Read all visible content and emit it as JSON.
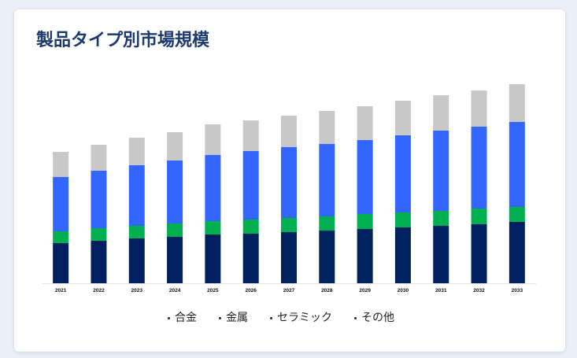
{
  "chart_data": {
    "type": "bar",
    "stacked": true,
    "title": "製品タイプ別市場規模",
    "categories": [
      "2021",
      "2022",
      "2023",
      "2024",
      "2025",
      "2026",
      "2027",
      "2028",
      "2029",
      "2030",
      "2031",
      "2032",
      "2033"
    ],
    "series": [
      {
        "name": "合金",
        "color": "#002060",
        "values": [
          5.1,
          5.4,
          5.7,
          5.9,
          6.2,
          6.3,
          6.5,
          6.7,
          6.9,
          7.1,
          7.3,
          7.5,
          7.8
        ]
      },
      {
        "name": "金属",
        "color": "#00b050",
        "values": [
          1.5,
          1.6,
          1.6,
          1.7,
          1.7,
          1.8,
          1.8,
          1.8,
          1.9,
          1.9,
          1.9,
          2.0,
          1.9
        ]
      },
      {
        "name": "セラミック",
        "color": "#3366ff",
        "values": [
          6.9,
          7.3,
          7.7,
          8.0,
          8.4,
          8.7,
          9.0,
          9.2,
          9.4,
          9.8,
          10.2,
          10.4,
          10.8
        ]
      },
      {
        "name": "その他",
        "color": "#c8c8c8",
        "values": [
          3.2,
          3.3,
          3.5,
          3.6,
          3.9,
          3.9,
          4.0,
          4.2,
          4.3,
          4.4,
          4.5,
          4.6,
          4.8
        ]
      }
    ],
    "ylim": [
      0,
      28
    ],
    "y_axis_visible": false,
    "grid": false,
    "legend": "bottom",
    "legend_marker_color": "#222222"
  },
  "theme": {
    "title_color": "#1d3a70",
    "page_background": "#eaf0f8",
    "card_background": "#ffffff"
  }
}
